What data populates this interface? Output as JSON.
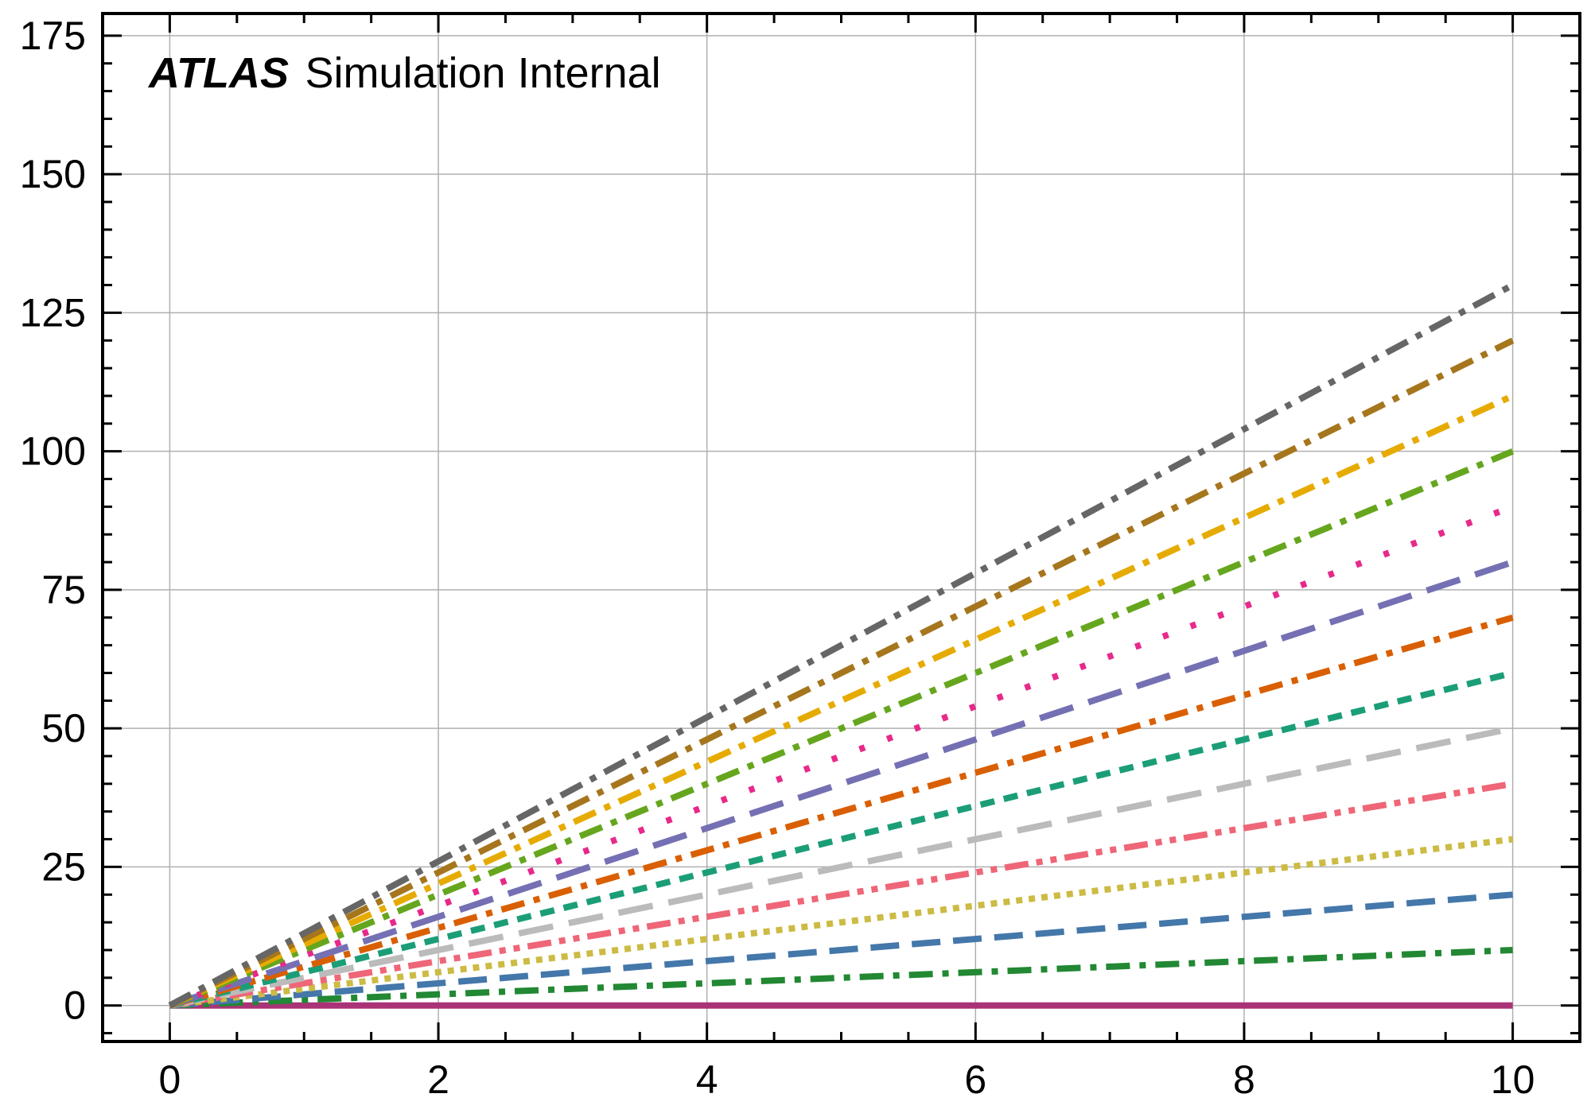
{
  "chart_data": {
    "type": "line",
    "annotation": {
      "experiment": "ATLAS",
      "label": "Simulation Internal"
    },
    "title": "",
    "xlabel": "",
    "ylabel": "",
    "xlim": [
      -0.5,
      10.5
    ],
    "ylim": [
      -6.5,
      179
    ],
    "x_ticks": [
      0,
      2,
      4,
      6,
      8,
      10
    ],
    "y_ticks": [
      0,
      25,
      50,
      75,
      100,
      125,
      150,
      175
    ],
    "x_tick_labels": [
      "0",
      "2",
      "4",
      "6",
      "8",
      "10"
    ],
    "y_tick_labels": [
      "0",
      "25",
      "50",
      "75",
      "100",
      "125",
      "150",
      "175"
    ],
    "grid": true,
    "x": [
      0,
      10
    ],
    "series": [
      {
        "values": [
          0,
          0
        ],
        "color": "#aa3377",
        "style": "solid"
      },
      {
        "values": [
          0,
          10
        ],
        "color": "#228833",
        "style": "dashdot"
      },
      {
        "values": [
          0,
          20
        ],
        "color": "#4477aa",
        "style": "dashed"
      },
      {
        "values": [
          0,
          30
        ],
        "color": "#ccbb44",
        "style": "dotted"
      },
      {
        "values": [
          0,
          40
        ],
        "color": "#ee6677",
        "style": "dashdotdot"
      },
      {
        "values": [
          0,
          50
        ],
        "color": "#bbbbbb",
        "style": "longdash"
      },
      {
        "values": [
          0,
          60
        ],
        "color": "#1b9e77",
        "style": "shortdash"
      },
      {
        "values": [
          0,
          70
        ],
        "color": "#d95f02",
        "style": "dashdot"
      },
      {
        "values": [
          0,
          80
        ],
        "color": "#7570b3",
        "style": "longdash"
      },
      {
        "values": [
          0,
          90
        ],
        "color": "#e7298a",
        "style": "sparsedot"
      },
      {
        "values": [
          0,
          100
        ],
        "color": "#66a61e",
        "style": "dashdot"
      },
      {
        "values": [
          0,
          110
        ],
        "color": "#e6ab02",
        "style": "dashdot"
      },
      {
        "values": [
          0,
          120
        ],
        "color": "#a6761d",
        "style": "dashdot"
      },
      {
        "values": [
          0,
          130
        ],
        "color": "#666666",
        "style": "dashdot"
      }
    ]
  }
}
